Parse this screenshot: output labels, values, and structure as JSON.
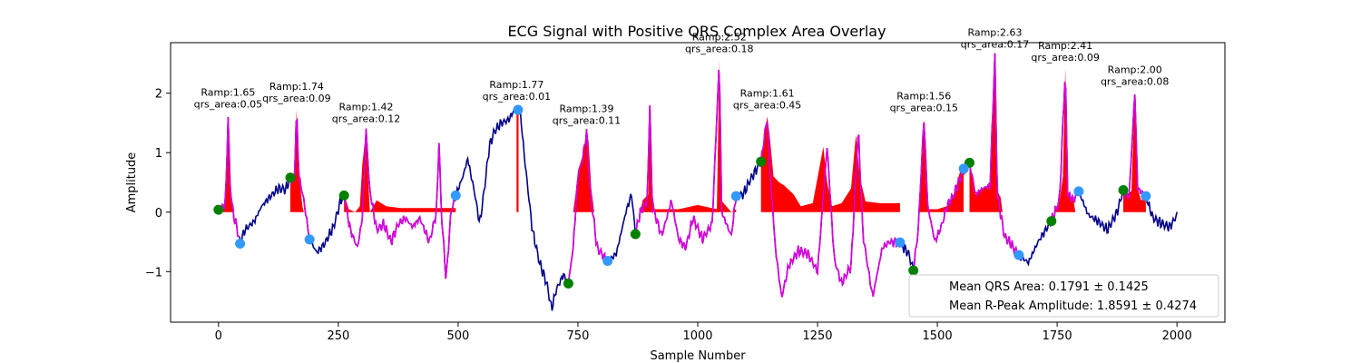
{
  "chart_data": {
    "type": "line",
    "title": "ECG Signal with Positive QRS Complex Area Overlay",
    "xlabel": "Sample Number",
    "ylabel": "Amplitude",
    "xlim": [
      -100,
      2100
    ],
    "ylim": [
      -1.85,
      2.85
    ],
    "xticks": [
      0,
      250,
      500,
      750,
      1000,
      1250,
      1500,
      1750,
      2000
    ],
    "yticks": [
      -1,
      0,
      1,
      2
    ],
    "grid": false,
    "colors": {
      "ecg": "#00008b",
      "qrs_segment": "#dd00dd",
      "qrs_area": "#ff0000",
      "onset": "#008000",
      "offset": "#3399ff"
    },
    "ecg_anchor_points": [
      [
        0,
        0.04
      ],
      [
        8,
        0.06
      ],
      [
        15,
        0.2
      ],
      [
        20,
        1.62
      ],
      [
        24,
        0.5
      ],
      [
        30,
        0.0
      ],
      [
        38,
        -0.25
      ],
      [
        45,
        -0.52
      ],
      [
        55,
        -0.3
      ],
      [
        75,
        -0.15
      ],
      [
        90,
        0.1
      ],
      [
        110,
        0.28
      ],
      [
        125,
        0.4
      ],
      [
        140,
        0.38
      ],
      [
        150,
        0.58
      ],
      [
        158,
        0.52
      ],
      [
        163,
        1.72
      ],
      [
        168,
        0.6
      ],
      [
        178,
        0.2
      ],
      [
        190,
        -0.46
      ],
      [
        205,
        -0.68
      ],
      [
        220,
        -0.55
      ],
      [
        240,
        -0.25
      ],
      [
        255,
        0.2
      ],
      [
        262,
        0.3
      ],
      [
        275,
        -0.3
      ],
      [
        290,
        -0.6
      ],
      [
        300,
        -0.1
      ],
      [
        308,
        1.38
      ],
      [
        315,
        0.4
      ],
      [
        330,
        -0.3
      ],
      [
        345,
        -0.2
      ],
      [
        360,
        -0.5
      ],
      [
        375,
        -0.2
      ],
      [
        390,
        -0.1
      ],
      [
        405,
        -0.25
      ],
      [
        420,
        -0.1
      ],
      [
        440,
        -0.5
      ],
      [
        455,
        0.0
      ],
      [
        460,
        1.2
      ],
      [
        465,
        0.0
      ],
      [
        475,
        -1.15
      ],
      [
        485,
        0.0
      ],
      [
        495,
        0.28
      ],
      [
        510,
        0.6
      ],
      [
        520,
        0.9
      ],
      [
        535,
        0.3
      ],
      [
        545,
        -0.2
      ],
      [
        555,
        0.4
      ],
      [
        565,
        1.1
      ],
      [
        575,
        1.35
      ],
      [
        590,
        1.5
      ],
      [
        605,
        1.55
      ],
      [
        620,
        1.75
      ],
      [
        630,
        1.65
      ],
      [
        640,
        0.8
      ],
      [
        655,
        -0.3
      ],
      [
        670,
        -0.85
      ],
      [
        685,
        -1.2
      ],
      [
        695,
        -1.63
      ],
      [
        705,
        -1.3
      ],
      [
        720,
        -1.05
      ],
      [
        730,
        -1.2
      ],
      [
        740,
        -0.6
      ],
      [
        750,
        0.6
      ],
      [
        760,
        0.9
      ],
      [
        768,
        1.35
      ],
      [
        775,
        0.4
      ],
      [
        790,
        -0.6
      ],
      [
        812,
        -0.83
      ],
      [
        830,
        -0.7
      ],
      [
        850,
        0.0
      ],
      [
        862,
        0.3
      ],
      [
        870,
        -0.37
      ],
      [
        880,
        0.0
      ],
      [
        895,
        0.2
      ],
      [
        900,
        1.85
      ],
      [
        905,
        0.1
      ],
      [
        925,
        -0.4
      ],
      [
        945,
        0.2
      ],
      [
        960,
        -0.45
      ],
      [
        975,
        -0.6
      ],
      [
        990,
        -0.1
      ],
      [
        1010,
        -0.45
      ],
      [
        1030,
        -0.2
      ],
      [
        1045,
        2.55
      ],
      [
        1050,
        0.0
      ],
      [
        1070,
        -0.4
      ],
      [
        1080,
        0.27
      ],
      [
        1095,
        0.3
      ],
      [
        1110,
        0.55
      ],
      [
        1132,
        0.85
      ],
      [
        1145,
        1.61
      ],
      [
        1150,
        0.8
      ],
      [
        1162,
        -0.6
      ],
      [
        1175,
        -1.44
      ],
      [
        1190,
        -0.9
      ],
      [
        1210,
        -0.65
      ],
      [
        1230,
        -0.7
      ],
      [
        1250,
        -1.0
      ],
      [
        1270,
        1.1
      ],
      [
        1285,
        -0.8
      ],
      [
        1300,
        -1.2
      ],
      [
        1320,
        -0.9
      ],
      [
        1335,
        1.4
      ],
      [
        1345,
        -0.4
      ],
      [
        1365,
        -1.43
      ],
      [
        1385,
        -0.6
      ],
      [
        1400,
        -0.5
      ],
      [
        1422,
        -0.51
      ],
      [
        1440,
        -0.7
      ],
      [
        1450,
        -0.98
      ],
      [
        1460,
        -0.3
      ],
      [
        1472,
        1.56
      ],
      [
        1480,
        0.1
      ],
      [
        1495,
        -0.5
      ],
      [
        1510,
        -0.2
      ],
      [
        1520,
        0.1
      ],
      [
        1535,
        0.3
      ],
      [
        1555,
        0.72
      ],
      [
        1567,
        0.83
      ],
      [
        1580,
        0.3
      ],
      [
        1595,
        0.4
      ],
      [
        1610,
        0.45
      ],
      [
        1620,
        2.63
      ],
      [
        1625,
        0.3
      ],
      [
        1640,
        -0.4
      ],
      [
        1655,
        -0.55
      ],
      [
        1670,
        -0.72
      ],
      [
        1690,
        -0.85
      ],
      [
        1710,
        -0.5
      ],
      [
        1738,
        -0.15
      ],
      [
        1755,
        0.2
      ],
      [
        1767,
        2.41
      ],
      [
        1772,
        0.3
      ],
      [
        1784,
        0.2
      ],
      [
        1795,
        0.35
      ],
      [
        1815,
        -0.05
      ],
      [
        1835,
        -0.15
      ],
      [
        1855,
        -0.3
      ],
      [
        1875,
        0.0
      ],
      [
        1888,
        0.37
      ],
      [
        1900,
        0.25
      ],
      [
        1912,
        2.0
      ],
      [
        1918,
        0.4
      ],
      [
        1935,
        0.27
      ],
      [
        1950,
        -0.1
      ],
      [
        1970,
        -0.2
      ],
      [
        1985,
        -0.25
      ],
      [
        2000,
        -0.05
      ]
    ],
    "qrs_segments": [
      [
        0,
        45
      ],
      [
        150,
        190
      ],
      [
        262,
        495
      ],
      [
        730,
        812
      ],
      [
        870,
        1080
      ],
      [
        1132,
        1422
      ],
      [
        1450,
        1670
      ],
      [
        1738,
        1795
      ],
      [
        1888,
        1935
      ]
    ],
    "qrs_area_fills": [
      [
        [
          0,
          0
        ],
        [
          5,
          0.05
        ],
        [
          12,
          0.15
        ],
        [
          18,
          0.7
        ],
        [
          20,
          1.62
        ],
        [
          23,
          0.8
        ],
        [
          27,
          0.2
        ],
        [
          30,
          0
        ]
      ],
      [
        [
          150,
          0
        ],
        [
          150,
          0.58
        ],
        [
          158,
          0.52
        ],
        [
          163,
          1.72
        ],
        [
          168,
          0.6
        ],
        [
          175,
          0.1
        ],
        [
          178,
          0
        ]
      ],
      [
        [
          262,
          0
        ],
        [
          262,
          0.3
        ],
        [
          272,
          0.05
        ],
        [
          285,
          0
        ],
        [
          295,
          0.1
        ],
        [
          300,
          0.8
        ],
        [
          308,
          1.38
        ],
        [
          312,
          0.6
        ],
        [
          316,
          0
        ],
        [
          330,
          0.2
        ],
        [
          350,
          0.1
        ],
        [
          380,
          0.07
        ],
        [
          410,
          0.07
        ],
        [
          450,
          0.07
        ],
        [
          480,
          0.07
        ],
        [
          495,
          0.07
        ],
        [
          495,
          0
        ]
      ],
      [
        [
          622,
          0
        ],
        [
          622,
          1.7
        ],
        [
          626,
          1.7
        ],
        [
          626,
          0
        ]
      ],
      [
        [
          740,
          0
        ],
        [
          745,
          0.3
        ],
        [
          750,
          0.7
        ],
        [
          760,
          0.95
        ],
        [
          768,
          1.35
        ],
        [
          772,
          1.2
        ],
        [
          778,
          0.4
        ],
        [
          784,
          0
        ]
      ],
      [
        [
          880,
          0
        ],
        [
          885,
          0.2
        ],
        [
          897,
          0.3
        ],
        [
          900,
          1.85
        ],
        [
          904,
          0.4
        ],
        [
          910,
          0.05
        ],
        [
          960,
          0.05
        ],
        [
          1000,
          0.12
        ],
        [
          1040,
          0.05
        ],
        [
          1045,
          2.55
        ],
        [
          1049,
          0.2
        ],
        [
          1070,
          0
        ],
        [
          1080,
          0.05
        ],
        [
          1080,
          0
        ]
      ],
      [
        [
          1132,
          0
        ],
        [
          1132,
          0.85
        ],
        [
          1138,
          1.2
        ],
        [
          1145,
          1.61
        ],
        [
          1150,
          1.3
        ],
        [
          1158,
          0.6
        ],
        [
          1170,
          0.5
        ],
        [
          1180,
          0.45
        ],
        [
          1200,
          0.3
        ],
        [
          1215,
          0.1
        ],
        [
          1240,
          0.15
        ],
        [
          1262,
          1.1
        ],
        [
          1270,
          0.5
        ],
        [
          1280,
          0.1
        ],
        [
          1300,
          0.15
        ],
        [
          1320,
          0.4
        ],
        [
          1330,
          1.3
        ],
        [
          1338,
          0.6
        ],
        [
          1350,
          0.18
        ],
        [
          1380,
          0.15
        ],
        [
          1420,
          0.15
        ],
        [
          1422,
          0.15
        ],
        [
          1422,
          0
        ]
      ],
      [
        [
          1460,
          0
        ],
        [
          1465,
          0.3
        ],
        [
          1470,
          1.0
        ],
        [
          1472,
          1.56
        ],
        [
          1476,
          0.5
        ],
        [
          1480,
          0.05
        ],
        [
          1500,
          0.05
        ],
        [
          1520,
          0.1
        ],
        [
          1535,
          0.3
        ],
        [
          1548,
          0.7
        ],
        [
          1555,
          0.72
        ],
        [
          1555,
          0
        ]
      ],
      [
        [
          1567,
          0
        ],
        [
          1567,
          0.83
        ],
        [
          1575,
          0.55
        ],
        [
          1580,
          0.3
        ],
        [
          1595,
          0.4
        ],
        [
          1610,
          0.45
        ],
        [
          1620,
          2.63
        ],
        [
          1625,
          0.35
        ],
        [
          1632,
          0.25
        ],
        [
          1636,
          0
        ]
      ],
      [
        [
          1745,
          0
        ],
        [
          1755,
          0.2
        ],
        [
          1762,
          0.6
        ],
        [
          1767,
          2.41
        ],
        [
          1772,
          0.35
        ],
        [
          1784,
          0.2
        ],
        [
          1788,
          0
        ]
      ],
      [
        [
          1888,
          0
        ],
        [
          1888,
          0.37
        ],
        [
          1895,
          0.3
        ],
        [
          1905,
          0.35
        ],
        [
          1912,
          2.0
        ],
        [
          1918,
          0.4
        ],
        [
          1925,
          0.2
        ],
        [
          1935,
          0.27
        ],
        [
          1935,
          0
        ]
      ]
    ],
    "onset_points": [
      [
        0,
        0.04
      ],
      [
        150,
        0.58
      ],
      [
        262,
        0.28
      ],
      [
        730,
        -1.2
      ],
      [
        870,
        -0.37
      ],
      [
        1132,
        0.85
      ],
      [
        1450,
        -0.98
      ],
      [
        1567,
        0.83
      ],
      [
        1738,
        -0.15
      ],
      [
        1888,
        0.37
      ]
    ],
    "offset_points": [
      [
        45,
        -0.53
      ],
      [
        190,
        -0.46
      ],
      [
        495,
        0.28
      ],
      [
        625,
        1.72
      ],
      [
        812,
        -0.82
      ],
      [
        1080,
        0.27
      ],
      [
        1422,
        -0.51
      ],
      [
        1555,
        0.73
      ],
      [
        1670,
        -0.72
      ],
      [
        1795,
        0.35
      ],
      [
        1935,
        0.27
      ]
    ],
    "annotations": [
      {
        "ramp": "Ramp:1.65",
        "area": "qrs_area:0.05",
        "x": 20,
        "y": 1.62
      },
      {
        "ramp": "Ramp:1.74",
        "area": "qrs_area:0.09",
        "x": 163,
        "y": 1.72
      },
      {
        "ramp": "Ramp:1.42",
        "area": "qrs_area:0.12",
        "x": 308,
        "y": 1.38
      },
      {
        "ramp": "Ramp:1.77",
        "area": "qrs_area:0.01",
        "x": 622,
        "y": 1.75
      },
      {
        "ramp": "Ramp:1.39",
        "area": "qrs_area:0.11",
        "x": 768,
        "y": 1.35
      },
      {
        "ramp": "Ramp:2.52",
        "area": "qrs_area:0.18",
        "x": 1045,
        "y": 2.55
      },
      {
        "ramp": "Ramp:1.61",
        "area": "qrs_area:0.45",
        "x": 1145,
        "y": 1.61
      },
      {
        "ramp": "Ramp:1.56",
        "area": "qrs_area:0.15",
        "x": 1472,
        "y": 1.56
      },
      {
        "ramp": "Ramp:2.63",
        "area": "qrs_area:0.17",
        "x": 1620,
        "y": 2.63
      },
      {
        "ramp": "Ramp:2.41",
        "area": "qrs_area:0.09",
        "x": 1767,
        "y": 2.41
      },
      {
        "ramp": "Ramp:2.00",
        "area": "qrs_area:0.08",
        "x": 1912,
        "y": 2.0
      }
    ],
    "legend": {
      "placement": "lower right",
      "entries": [
        "Mean QRS Area: 0.1791 ± 0.1425",
        "Mean R-Peak Amplitude: 1.8591 ± 0.4274"
      ]
    }
  }
}
